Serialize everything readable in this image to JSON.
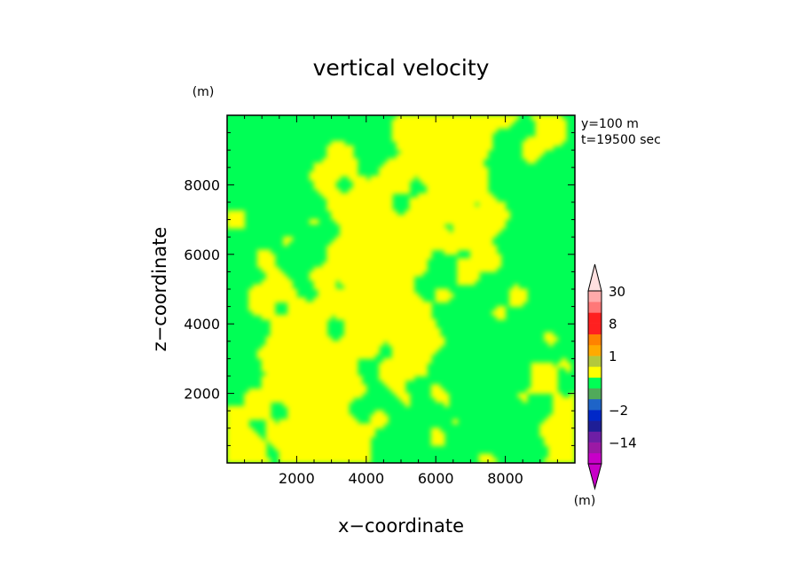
{
  "chart_data": {
    "type": "heatmap",
    "title": "vertical velocity",
    "xlabel": "x−coordinate",
    "ylabel": "z−coordinate",
    "x_unit": "(m)",
    "y_unit": "(m)",
    "colorbar_unit": "(m)",
    "info": [
      "y=100  m",
      "t=19500 sec"
    ],
    "xlim": [
      0,
      10000
    ],
    "ylim": [
      0,
      10000
    ],
    "x_ticks": [
      2000,
      4000,
      6000,
      8000
    ],
    "y_ticks": [
      2000,
      4000,
      6000,
      8000
    ],
    "x_tick_labels": [
      "2000",
      "4000",
      "6000",
      "8000"
    ],
    "y_tick_labels": [
      "2000",
      "4000",
      "6000",
      "8000"
    ],
    "colors": {
      "positive": "#ffff00",
      "negative": "#00ff55",
      "axes": "#000000"
    },
    "colorbar": {
      "levels": [
        -30,
        -20,
        -14,
        -8,
        -5,
        -2,
        -1,
        -0.5,
        0,
        0.5,
        1,
        2,
        5,
        8,
        14,
        20,
        30
      ],
      "colors": [
        "#c800c8",
        "#9b19a5",
        "#6e1ea5",
        "#1e1e96",
        "#0028c8",
        "#1e64c8",
        "#50aa5a",
        "#00ff55",
        "#ffff00",
        "#b4c83c",
        "#ffaa00",
        "#ff8200",
        "#ff2020",
        "#ff2020",
        "#ff7878",
        "#ffaaaa"
      ],
      "low_color": "#c800c8",
      "high_color": "#ffe0e0",
      "labels": [
        "30",
        "8",
        "1",
        "−2",
        "−14"
      ],
      "label_values": [
        30,
        8,
        1,
        -2,
        -14
      ]
    }
  }
}
